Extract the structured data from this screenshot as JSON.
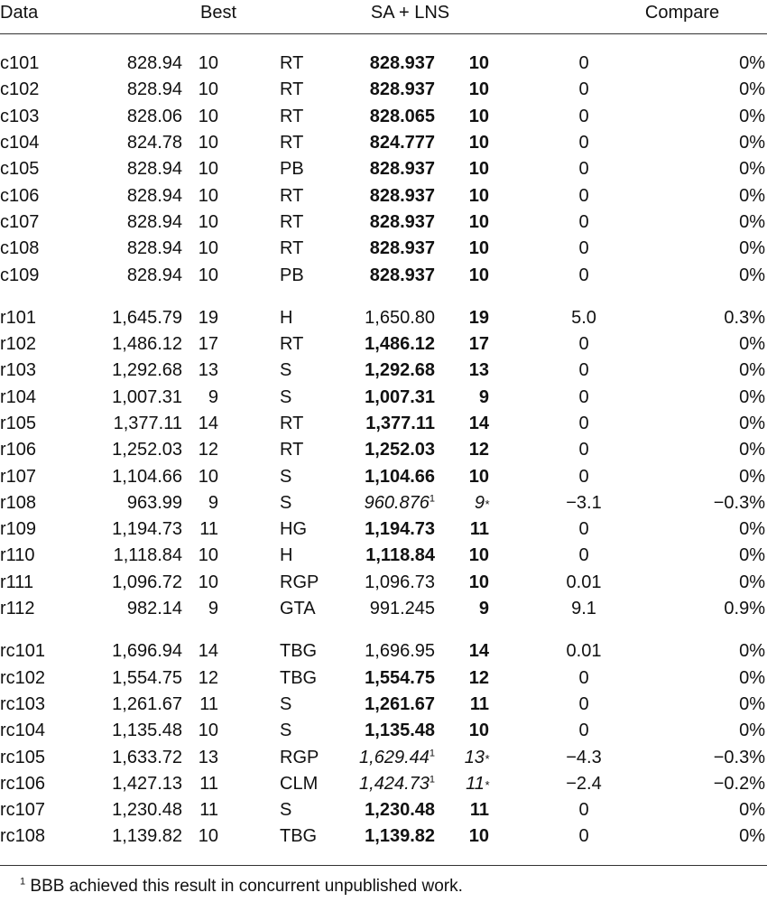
{
  "header": {
    "data": "Data",
    "best": "Best",
    "sa_lns": "SA + LNS",
    "compare": "Compare"
  },
  "groups": [
    {
      "rows": [
        {
          "name": "c101",
          "best": "828.94",
          "veh": "10",
          "src": "RT",
          "sa": "828.937",
          "sav": "10",
          "diff": "0",
          "pct": "0%",
          "sa_style": "bold",
          "sav_style": "bold",
          "sup": "",
          "star": ""
        },
        {
          "name": "c102",
          "best": "828.94",
          "veh": "10",
          "src": "RT",
          "sa": "828.937",
          "sav": "10",
          "diff": "0",
          "pct": "0%",
          "sa_style": "bold",
          "sav_style": "bold",
          "sup": "",
          "star": ""
        },
        {
          "name": "c103",
          "best": "828.06",
          "veh": "10",
          "src": "RT",
          "sa": "828.065",
          "sav": "10",
          "diff": "0",
          "pct": "0%",
          "sa_style": "bold",
          "sav_style": "bold",
          "sup": "",
          "star": ""
        },
        {
          "name": "c104",
          "best": "824.78",
          "veh": "10",
          "src": "RT",
          "sa": "824.777",
          "sav": "10",
          "diff": "0",
          "pct": "0%",
          "sa_style": "bold",
          "sav_style": "bold",
          "sup": "",
          "star": ""
        },
        {
          "name": "c105",
          "best": "828.94",
          "veh": "10",
          "src": "PB",
          "sa": "828.937",
          "sav": "10",
          "diff": "0",
          "pct": "0%",
          "sa_style": "bold",
          "sav_style": "bold",
          "sup": "",
          "star": ""
        },
        {
          "name": "c106",
          "best": "828.94",
          "veh": "10",
          "src": "RT",
          "sa": "828.937",
          "sav": "10",
          "diff": "0",
          "pct": "0%",
          "sa_style": "bold",
          "sav_style": "bold",
          "sup": "",
          "star": ""
        },
        {
          "name": "c107",
          "best": "828.94",
          "veh": "10",
          "src": "RT",
          "sa": "828.937",
          "sav": "10",
          "diff": "0",
          "pct": "0%",
          "sa_style": "bold",
          "sav_style": "bold",
          "sup": "",
          "star": ""
        },
        {
          "name": "c108",
          "best": "828.94",
          "veh": "10",
          "src": "RT",
          "sa": "828.937",
          "sav": "10",
          "diff": "0",
          "pct": "0%",
          "sa_style": "bold",
          "sav_style": "bold",
          "sup": "",
          "star": ""
        },
        {
          "name": "c109",
          "best": "828.94",
          "veh": "10",
          "src": "PB",
          "sa": "828.937",
          "sav": "10",
          "diff": "0",
          "pct": "0%",
          "sa_style": "bold",
          "sav_style": "bold",
          "sup": "",
          "star": ""
        }
      ]
    },
    {
      "rows": [
        {
          "name": "r101",
          "best": "1,645.79",
          "veh": "19",
          "src": "H",
          "sa": "1,650.80",
          "sav": "19",
          "diff": "5.0",
          "pct": "0.3%",
          "sa_style": "normal",
          "sav_style": "bold",
          "sup": "",
          "star": ""
        },
        {
          "name": "r102",
          "best": "1,486.12",
          "veh": "17",
          "src": "RT",
          "sa": "1,486.12",
          "sav": "17",
          "diff": "0",
          "pct": "0%",
          "sa_style": "bold",
          "sav_style": "bold",
          "sup": "",
          "star": ""
        },
        {
          "name": "r103",
          "best": "1,292.68",
          "veh": "13",
          "src": "S",
          "sa": "1,292.68",
          "sav": "13",
          "diff": "0",
          "pct": "0%",
          "sa_style": "bold",
          "sav_style": "bold",
          "sup": "",
          "star": ""
        },
        {
          "name": "r104",
          "best": "1,007.31",
          "veh": "9",
          "src": "S",
          "sa": "1,007.31",
          "sav": "9",
          "diff": "0",
          "pct": "0%",
          "sa_style": "bold",
          "sav_style": "bold",
          "sup": "",
          "star": ""
        },
        {
          "name": "r105",
          "best": "1,377.11",
          "veh": "14",
          "src": "RT",
          "sa": "1,377.11",
          "sav": "14",
          "diff": "0",
          "pct": "0%",
          "sa_style": "bold",
          "sav_style": "bold",
          "sup": "",
          "star": ""
        },
        {
          "name": "r106",
          "best": "1,252.03",
          "veh": "12",
          "src": "RT",
          "sa": "1,252.03",
          "sav": "12",
          "diff": "0",
          "pct": "0%",
          "sa_style": "bold",
          "sav_style": "bold",
          "sup": "",
          "star": ""
        },
        {
          "name": "r107",
          "best": "1,104.66",
          "veh": "10",
          "src": "S",
          "sa": "1,104.66",
          "sav": "10",
          "diff": "0",
          "pct": "0%",
          "sa_style": "bold",
          "sav_style": "bold",
          "sup": "",
          "star": ""
        },
        {
          "name": "r108",
          "best": "963.99",
          "veh": "9",
          "src": "S",
          "sa": "960.876",
          "sav": "9",
          "diff": "−3.1",
          "pct": "−0.3%",
          "sa_style": "italic",
          "sav_style": "italic",
          "sup": "1",
          "star": "*"
        },
        {
          "name": "r109",
          "best": "1,194.73",
          "veh": "11",
          "src": "HG",
          "sa": "1,194.73",
          "sav": "11",
          "diff": "0",
          "pct": "0%",
          "sa_style": "bold",
          "sav_style": "bold",
          "sup": "",
          "star": ""
        },
        {
          "name": "r110",
          "best": "1,118.84",
          "veh": "10",
          "src": "H",
          "sa": "1,118.84",
          "sav": "10",
          "diff": "0",
          "pct": "0%",
          "sa_style": "bold",
          "sav_style": "bold",
          "sup": "",
          "star": ""
        },
        {
          "name": "r111",
          "best": "1,096.72",
          "veh": "10",
          "src": "RGP",
          "sa": "1,096.73",
          "sav": "10",
          "diff": "0.01",
          "pct": "0%",
          "sa_style": "normal",
          "sav_style": "bold",
          "sup": "",
          "star": ""
        },
        {
          "name": "r112",
          "best": "982.14",
          "veh": "9",
          "src": "GTA",
          "sa": "991.245",
          "sav": "9",
          "diff": "9.1",
          "pct": "0.9%",
          "sa_style": "normal",
          "sav_style": "bold",
          "sup": "",
          "star": ""
        }
      ]
    },
    {
      "rows": [
        {
          "name": "rc101",
          "best": "1,696.94",
          "veh": "14",
          "src": "TBG",
          "sa": "1,696.95",
          "sav": "14",
          "diff": "0.01",
          "pct": "0%",
          "sa_style": "normal",
          "sav_style": "bold",
          "sup": "",
          "star": ""
        },
        {
          "name": "rc102",
          "best": "1,554.75",
          "veh": "12",
          "src": "TBG",
          "sa": "1,554.75",
          "sav": "12",
          "diff": "0",
          "pct": "0%",
          "sa_style": "bold",
          "sav_style": "bold",
          "sup": "",
          "star": ""
        },
        {
          "name": "rc103",
          "best": "1,261.67",
          "veh": "11",
          "src": "S",
          "sa": "1,261.67",
          "sav": "11",
          "diff": "0",
          "pct": "0%",
          "sa_style": "bold",
          "sav_style": "bold",
          "sup": "",
          "star": ""
        },
        {
          "name": "rc104",
          "best": "1,135.48",
          "veh": "10",
          "src": "S",
          "sa": "1,135.48",
          "sav": "10",
          "diff": "0",
          "pct": "0%",
          "sa_style": "bold",
          "sav_style": "bold",
          "sup": "",
          "star": ""
        },
        {
          "name": "rc105",
          "best": "1,633.72",
          "veh": "13",
          "src": "RGP",
          "sa": "1,629.44",
          "sav": "13",
          "diff": "−4.3",
          "pct": "−0.3%",
          "sa_style": "italic",
          "sav_style": "italic",
          "sup": "1",
          "star": "*"
        },
        {
          "name": "rc106",
          "best": "1,427.13",
          "veh": "11",
          "src": "CLM",
          "sa": "1,424.73",
          "sav": "11",
          "diff": "−2.4",
          "pct": "−0.2%",
          "sa_style": "italic",
          "sav_style": "italic",
          "sup": "1",
          "star": "*"
        },
        {
          "name": "rc107",
          "best": "1,230.48",
          "veh": "11",
          "src": "S",
          "sa": "1,230.48",
          "sav": "11",
          "diff": "0",
          "pct": "0%",
          "sa_style": "bold",
          "sav_style": "bold",
          "sup": "",
          "star": ""
        },
        {
          "name": "rc108",
          "best": "1,139.82",
          "veh": "10",
          "src": "TBG",
          "sa": "1,139.82",
          "sav": "10",
          "diff": "0",
          "pct": "0%",
          "sa_style": "bold",
          "sav_style": "bold",
          "sup": "",
          "star": ""
        }
      ]
    }
  ],
  "footnote": {
    "marker": "1",
    "text": " BBB achieved this result in concurrent unpublished work."
  }
}
